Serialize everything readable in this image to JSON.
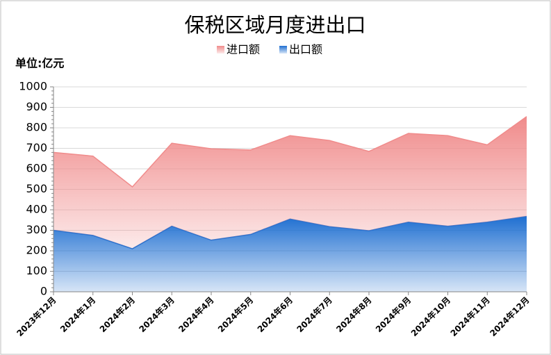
{
  "chart_data": {
    "type": "stacked-area",
    "title": "保税区域月度进出口",
    "y_label": "单位:亿元",
    "categories": [
      "2023年12月",
      "2024年1月",
      "2024年2月",
      "2024年3月",
      "2024年4月",
      "2024年5月",
      "2024年6月",
      "2024年7月",
      "2024年8月",
      "2024年9月",
      "2024年10月",
      "2024年11月",
      "2024年12月"
    ],
    "series": [
      {
        "name": "进口额",
        "color": "#f08b8b",
        "values": [
          380,
          387,
          302,
          405,
          446,
          412,
          407,
          420,
          387,
          433,
          442,
          377,
          487
        ]
      },
      {
        "name": "出口额",
        "color": "#1f6fd1",
        "values": [
          300,
          275,
          210,
          320,
          252,
          280,
          355,
          318,
          298,
          340,
          320,
          340,
          368
        ]
      }
    ],
    "ylim": [
      0,
      1000
    ],
    "yticks": [
      0,
      100,
      200,
      300,
      400,
      500,
      600,
      700,
      800,
      900,
      1000
    ],
    "grid": true
  }
}
